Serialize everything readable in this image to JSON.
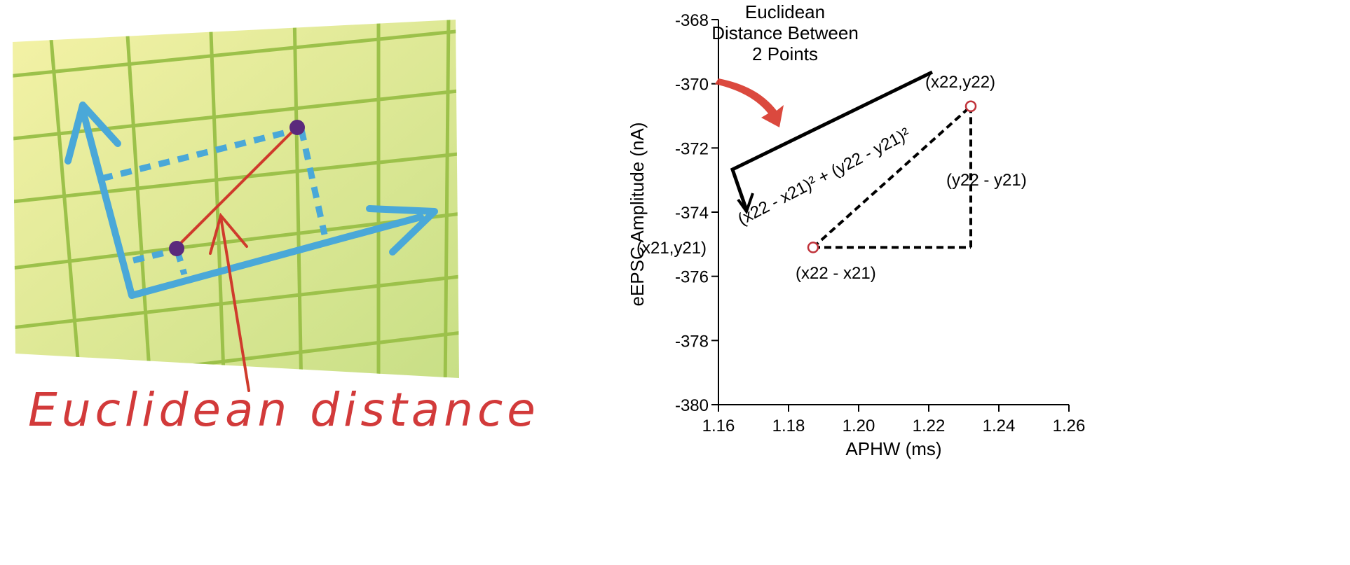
{
  "illustration": {
    "caption": "Euclidean distance",
    "colors": {
      "grid_fill_top": "#f3f1a2",
      "grid_fill_bottom": "#cfe28a",
      "grid_lines": "#9cc14a",
      "axis": "#4aa8d8",
      "distance_line": "#cf3b2c",
      "points": "#5b2a7c",
      "caption": "#d23a3a"
    }
  },
  "chart_data": {
    "type": "scatter",
    "xlabel": "APHW (ms)",
    "ylabel": "eEPSC Amplitude (nA)",
    "xlim": [
      1.16,
      1.26
    ],
    "ylim": [
      -380,
      -368
    ],
    "x_ticks": [
      "1.16",
      "1.18",
      "1.20",
      "1.22",
      "1.24",
      "1.26"
    ],
    "y_ticks": [
      "-368",
      "-370",
      "-372",
      "-374",
      "-376",
      "-378",
      "-380"
    ],
    "points": [
      {
        "x": 1.187,
        "y": -375.1,
        "label": "(x21,y21)"
      },
      {
        "x": 1.232,
        "y": -370.7,
        "label": "(x22,y22)"
      }
    ],
    "annotations": {
      "title_lines": [
        "Euclidean",
        "Distance Between",
        "2 Points"
      ],
      "dx_label": "(x22 - x21)",
      "dy_label": "(y22 - y21)",
      "formula": "(x22 - x21)² + (y22 - y21)²"
    },
    "colors": {
      "points": "#c0323a",
      "arrow": "#d83a2e",
      "lines": "#000000"
    }
  }
}
